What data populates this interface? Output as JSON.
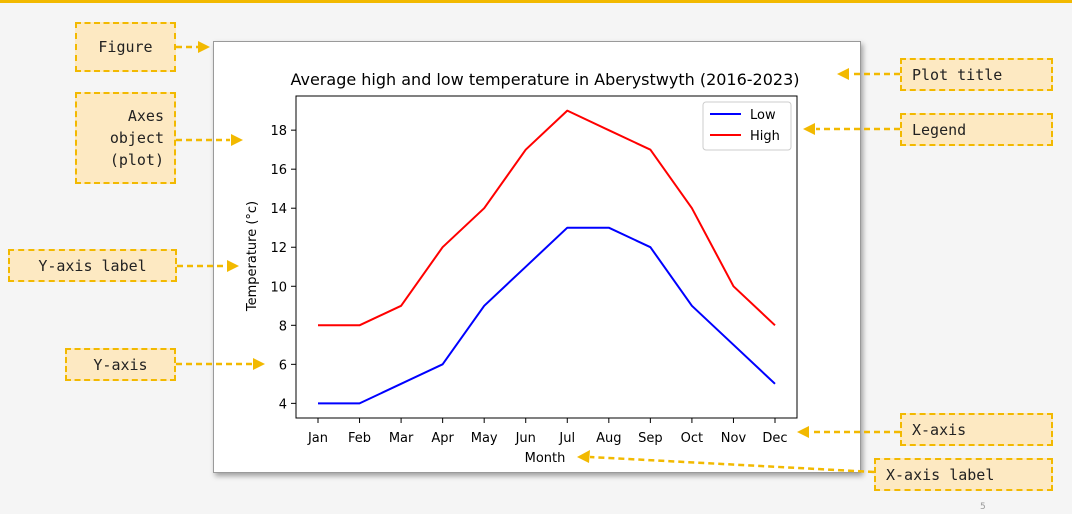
{
  "accent_color": "#f2b900",
  "callout_fill": "#fde9c2",
  "callouts": {
    "figure": "Figure",
    "axes_lines": [
      "Axes",
      "object",
      "(plot)"
    ],
    "y_axis_label": "Y-axis label",
    "y_axis": "Y-axis",
    "plot_title": "Plot title",
    "legend": "Legend",
    "x_axis": "X-axis",
    "x_axis_label": "X-axis label"
  },
  "page_number": "5",
  "chart_data": {
    "type": "line",
    "title": "Average high and low temperature in Aberystwyth (2016-2023)",
    "xlabel": "Month",
    "ylabel": "Temperature (°c)",
    "categories": [
      "Jan",
      "Feb",
      "Mar",
      "Apr",
      "May",
      "Jun",
      "Jul",
      "Aug",
      "Sep",
      "Oct",
      "Nov",
      "Dec"
    ],
    "ylim": [
      3.25,
      19.75
    ],
    "yticks": [
      4,
      6,
      8,
      10,
      12,
      14,
      16,
      18
    ],
    "grid": false,
    "legend_position": "top-right",
    "series": [
      {
        "name": "Low",
        "color": "#0000ff",
        "values": [
          4,
          4,
          5,
          6,
          9,
          11,
          13,
          13,
          12,
          9,
          7,
          5
        ]
      },
      {
        "name": "High",
        "color": "#ff0000",
        "values": [
          8,
          8,
          9,
          12,
          14,
          17,
          19,
          18,
          17,
          14,
          10,
          8
        ]
      }
    ]
  }
}
